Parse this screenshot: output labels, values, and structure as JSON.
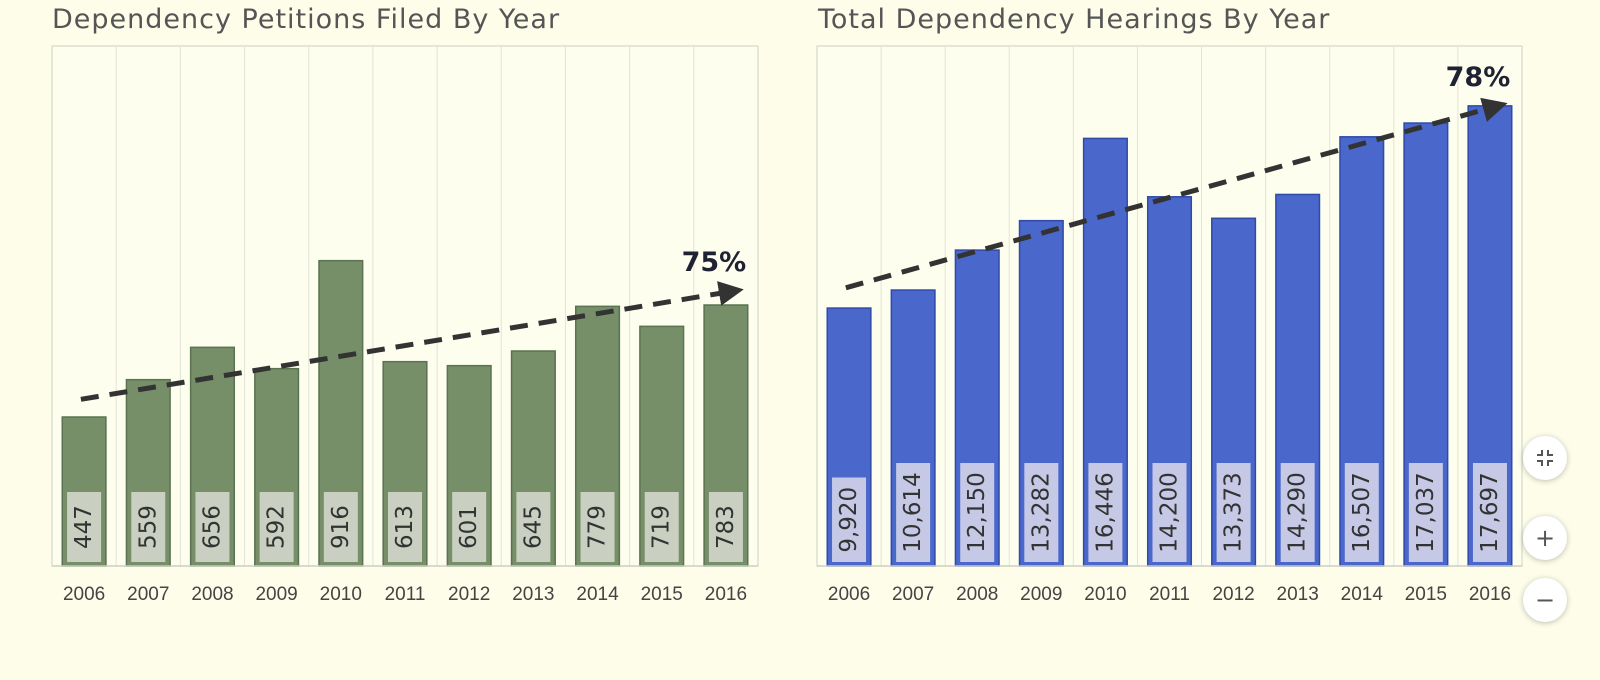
{
  "chart_data": [
    {
      "type": "bar",
      "title": "Dependency Petitions Filed By Year",
      "categories": [
        "2006",
        "2007",
        "2008",
        "2009",
        "2010",
        "2011",
        "2012",
        "2013",
        "2014",
        "2015",
        "2016"
      ],
      "values": [
        447,
        559,
        656,
        592,
        916,
        613,
        601,
        645,
        779,
        719,
        783
      ],
      "value_labels": [
        "447",
        "559",
        "656",
        "592",
        "916",
        "613",
        "601",
        "645",
        "779",
        "719",
        "783"
      ],
      "trend_label": "75%",
      "ylim": [
        0,
        1560
      ],
      "trend_from": 500,
      "trend_to": 825,
      "bar_color": "#768f68",
      "bar_edge_color": "#5a7350",
      "label_box_color": "#c9d0c2",
      "grid": true
    },
    {
      "type": "bar",
      "title": "Total Dependency Hearings By Year",
      "categories": [
        "2006",
        "2007",
        "2008",
        "2009",
        "2010",
        "2011",
        "2012",
        "2013",
        "2014",
        "2015",
        "2016"
      ],
      "values": [
        9920,
        10614,
        12150,
        13282,
        16446,
        14200,
        13373,
        14290,
        16507,
        17037,
        17697
      ],
      "value_labels": [
        "9,920",
        "10,614",
        "12,150",
        "13,282",
        "16,446",
        "14,200",
        "13,373",
        "14,290",
        "16,507",
        "17,037",
        "17,697"
      ],
      "trend_label": "78%",
      "ylim": [
        0,
        20000
      ],
      "trend_from": 10700,
      "trend_to": 17700,
      "bar_color": "#4a67cc",
      "bar_edge_color": "#2f4aa8",
      "label_box_color": "#c5c9e6",
      "grid": true
    }
  ],
  "controls": {
    "fit_icon": "collapse-icon",
    "zoom_in_glyph": "+",
    "zoom_out_glyph": "−"
  }
}
